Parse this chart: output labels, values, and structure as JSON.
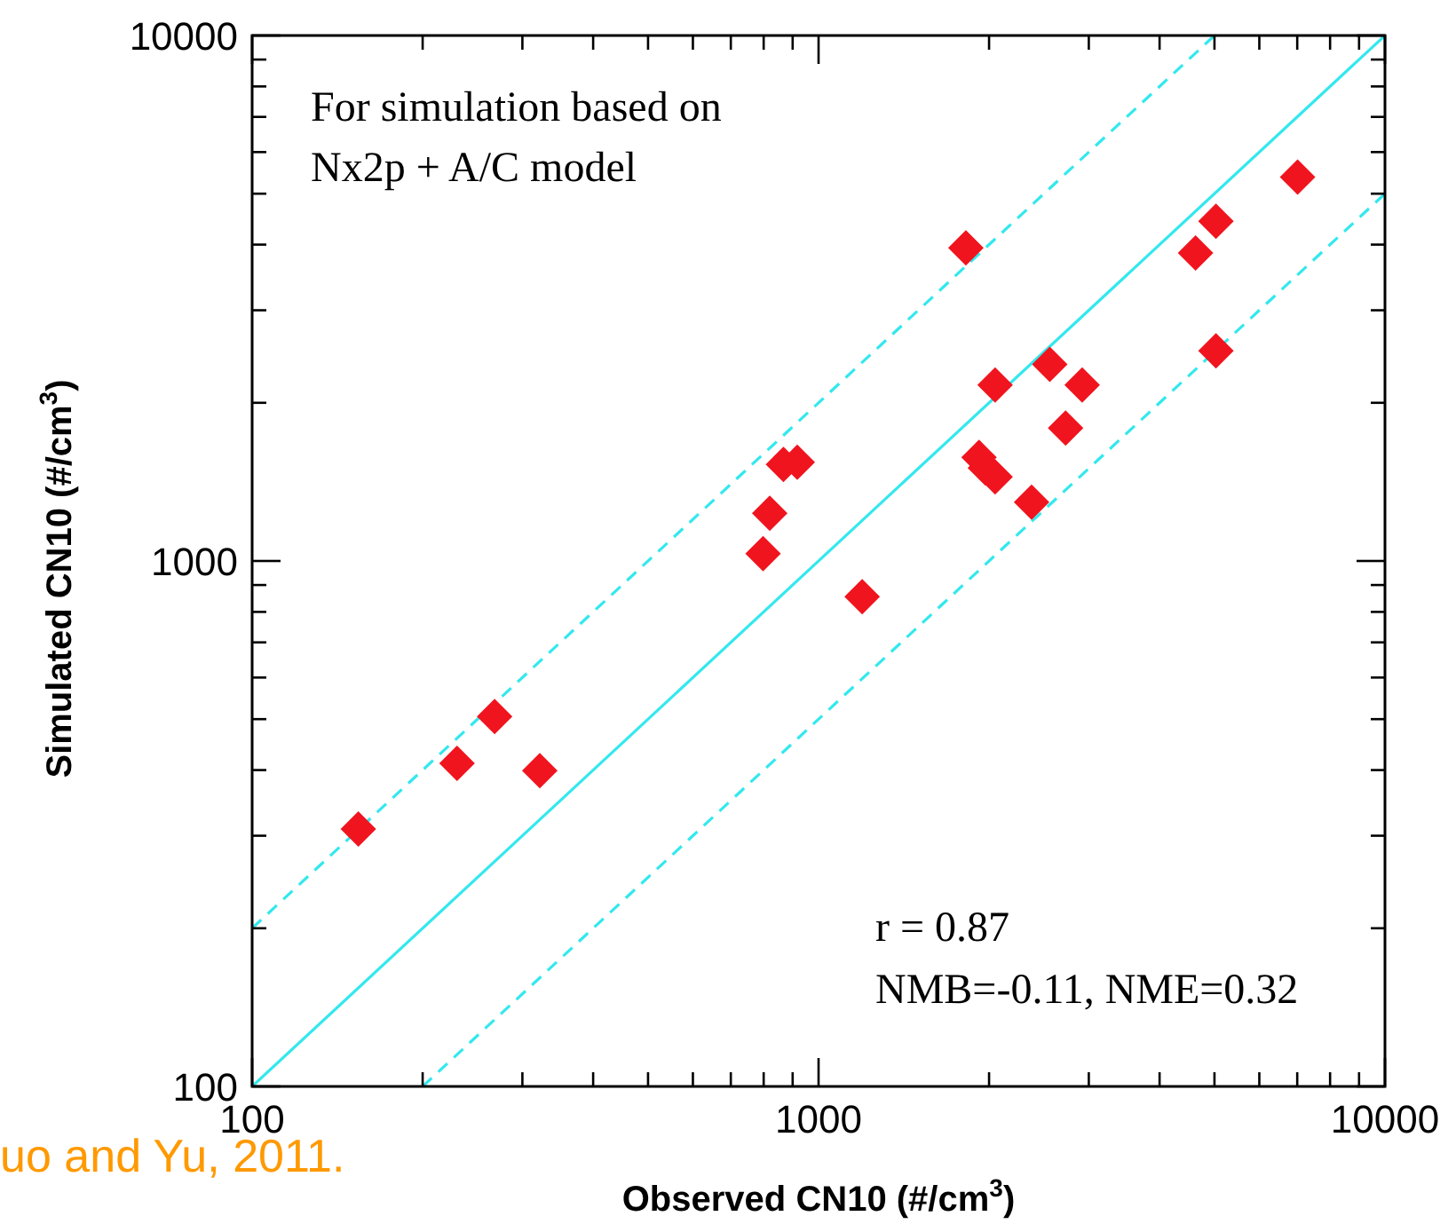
{
  "chart_data": {
    "type": "scatter",
    "xlabel": "Observed CN10 (#/cm$^{3}$)",
    "ylabel": "Simulated CN10 (#/cm$^{3}$)",
    "log": "xy",
    "xlim": [
      100,
      10000
    ],
    "ylim": [
      100,
      10000
    ],
    "xticks": [
      100,
      {
        "value": 200,
        "label": null
      },
      {
        "value": 300,
        "label": null
      },
      {
        "value": 400,
        "label": null
      },
      {
        "value": 500,
        "label": null
      },
      {
        "value": 600,
        "label": null
      },
      {
        "value": 700,
        "label": null
      },
      {
        "value": 800,
        "label": null
      },
      {
        "value": 900,
        "label": null
      },
      1000,
      {
        "value": 2000,
        "label": null
      },
      {
        "value": 3000,
        "label": null
      },
      {
        "value": 4000,
        "label": null
      },
      {
        "value": 5000,
        "label": null
      },
      {
        "value": 6000,
        "label": null
      },
      {
        "value": 7000,
        "label": null
      },
      {
        "value": 8000,
        "label": null
      },
      {
        "value": 9000,
        "label": null
      },
      10000
    ],
    "yticks": [
      100,
      {
        "value": 200,
        "label": null
      },
      {
        "value": 300,
        "label": null
      },
      {
        "value": 400,
        "label": null
      },
      {
        "value": 500,
        "label": null
      },
      {
        "value": 600,
        "label": null
      },
      {
        "value": 700,
        "label": null
      },
      {
        "value": 800,
        "label": null
      },
      {
        "value": 900,
        "label": null
      },
      1000,
      {
        "value": 2000,
        "label": null
      },
      {
        "value": 3000,
        "label": null
      },
      {
        "value": 4000,
        "label": null
      },
      {
        "value": 5000,
        "label": null
      },
      {
        "value": 6000,
        "label": null
      },
      {
        "value": 7000,
        "label": null
      },
      {
        "value": 8000,
        "label": null
      },
      {
        "value": 9000,
        "label": null
      },
      10000
    ],
    "series": [
      {
        "color": "#f0141e",
        "marker": "diamond",
        "x": [
          154,
          230,
          268,
          322,
          798,
          820,
          867,
          917,
          1194,
          1820,
          1920,
          1970,
          2050,
          2050,
          2377,
          2560,
          2730,
          2920,
          4630,
          5030,
          5030,
          7010
        ],
        "values": [
          309,
          412,
          506,
          399,
          1033,
          1233,
          1527,
          1541,
          855,
          3945,
          1574,
          1503,
          1445,
          2163,
          1294,
          2366,
          1790,
          2163,
          3855,
          4430,
          2512,
          5380
        ]
      },
      {
        "type": "line",
        "color": "#33e8ee",
        "line_style": "solid",
        "x": [
          100,
          10000
        ],
        "values": [
          100,
          10000
        ]
      },
      {
        "type": "line",
        "color": "#33e8ee",
        "line_style": "dashed",
        "x": [
          100,
          5000
        ],
        "values": [
          200,
          10000
        ]
      },
      {
        "type": "line",
        "color": "#33e8ee",
        "line_style": "dashed",
        "x": [
          200,
          10000
        ],
        "values": [
          100,
          5000
        ]
      }
    ],
    "annotations": [
      "For simulation based on",
      "Nx2p + A/C model",
      "r = 0.87",
      "NMB=-0.11, NME=0.32",
      "uo and Yu, 2011."
    ]
  }
}
